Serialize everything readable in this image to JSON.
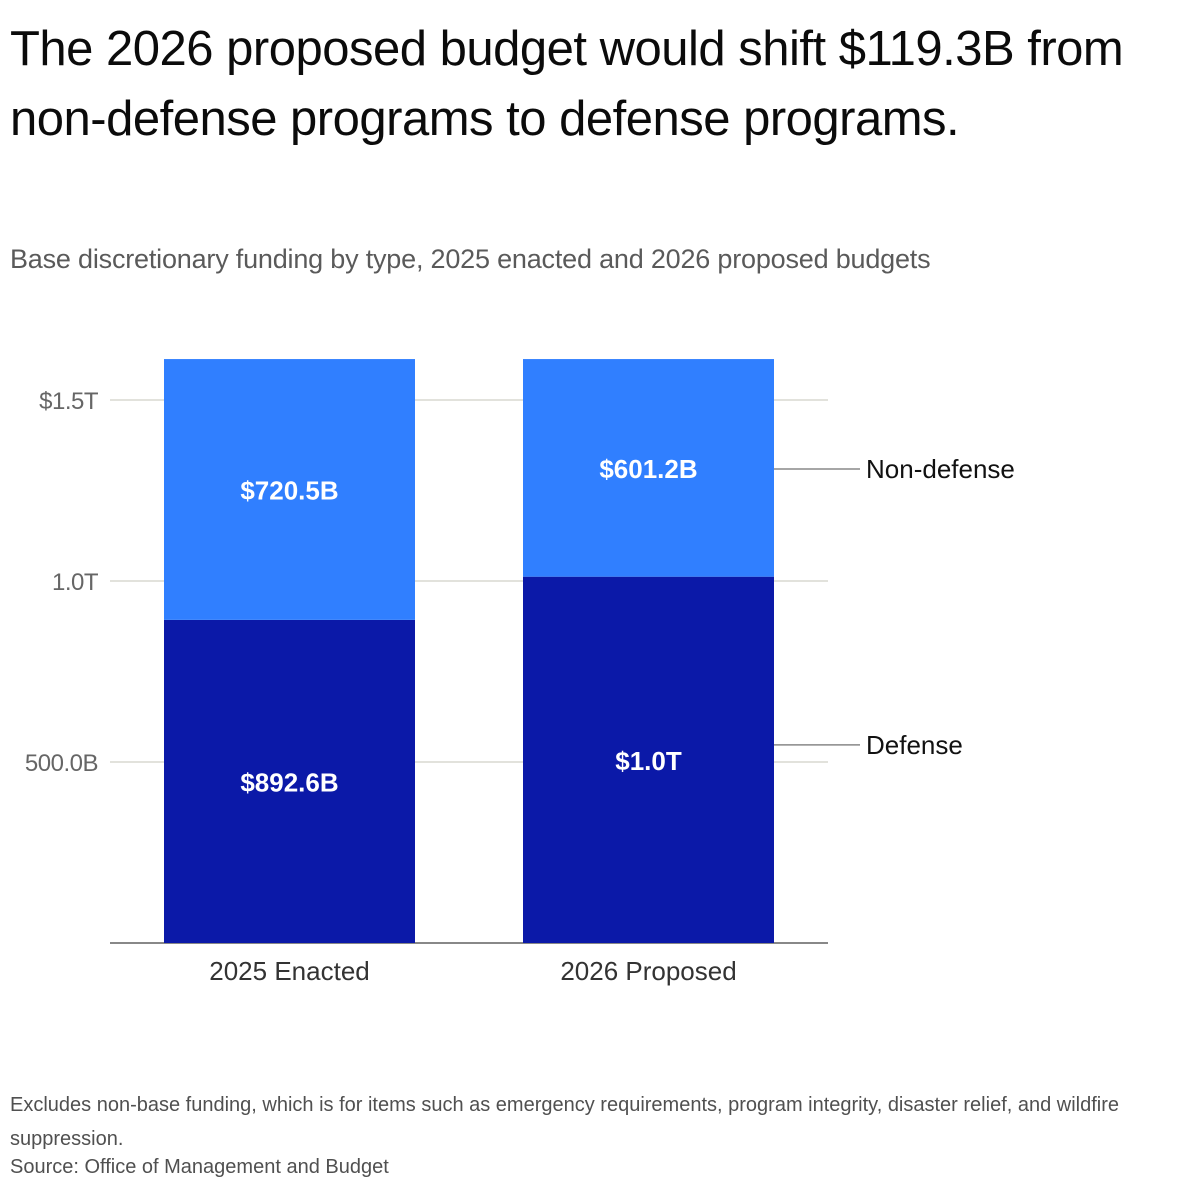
{
  "title": "The 2026 proposed budget would shift $119.3B from non-defense programs to defense programs.",
  "subtitle": "Base discretionary funding by type, 2025 enacted and 2026 proposed budgets",
  "note": "Excludes non-base funding, which is for items such as emergency requirements, program integrity, disaster relief, and wildfire suppression.",
  "source": "Source: Office of Management and Budget",
  "colors": {
    "defense": "#0b19a8",
    "non_defense": "#307fff",
    "grid": "#d8d8d0",
    "axis": "#888888"
  },
  "chart_data": {
    "type": "bar",
    "stacked": true,
    "title": "The 2026 proposed budget would shift $119.3B from non-defense programs to defense programs.",
    "subtitle": "Base discretionary funding by type, 2025 enacted and 2026 proposed budgets",
    "xlabel": "",
    "ylabel": "",
    "categories": [
      "2025 Enacted",
      "2026 Proposed"
    ],
    "series": [
      {
        "name": "Defense",
        "values": [
          892.6,
          1011.9
        ],
        "labels": [
          "$892.6B",
          "$1.0T"
        ]
      },
      {
        "name": "Non-defense",
        "values": [
          720.5,
          601.2
        ],
        "labels": [
          "$720.5B",
          "$601.2B"
        ]
      }
    ],
    "units": "billions USD",
    "yticks": [
      500,
      1000,
      1500
    ],
    "ytick_labels": [
      "500.0B",
      "1.0T",
      "$1.5T"
    ],
    "ylim": [
      0,
      1650
    ],
    "grid": true,
    "legend": "right, direct labels"
  }
}
